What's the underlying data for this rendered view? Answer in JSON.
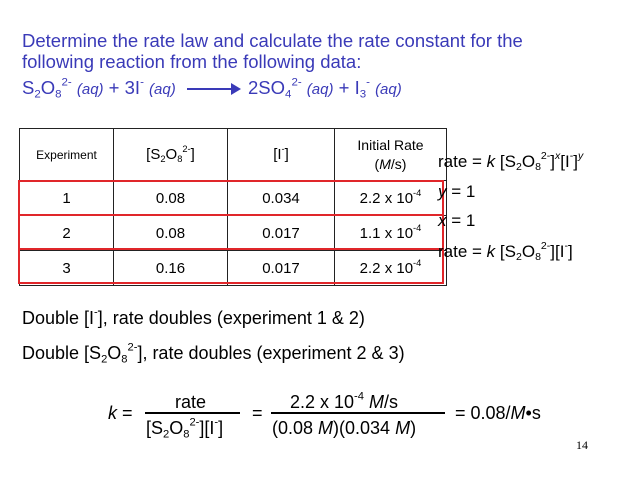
{
  "heading": {
    "line1": "Determine the rate law and calculate the rate constant for the",
    "line2": "following reaction from the following data:"
  },
  "reaction": {
    "reactant1": "S2O8 2- (aq)",
    "reactant2": "3I- (aq)",
    "product1": "2SO4 2- (aq)",
    "product2": "I3- (aq)"
  },
  "table": {
    "headers": [
      "Experiment",
      "[S2O8 2-]",
      "[I-]",
      "Initial Rate (M/s)"
    ],
    "rows": [
      {
        "experiment": "1",
        "s2o8": "0.08",
        "iodide": "0.034",
        "rate": "2.2 x 10-4"
      },
      {
        "experiment": "2",
        "s2o8": "0.08",
        "iodide": "0.017",
        "rate": "1.1 x 10-4"
      },
      {
        "experiment": "3",
        "s2o8": "0.16",
        "iodide": "0.017",
        "rate": "2.2 x 10-4"
      }
    ]
  },
  "rate_law": {
    "general": "rate = k [S2O8 2-]x[I-]y",
    "y_value": "y = 1",
    "x_value": "x = 1",
    "final": "rate = k [S2O8 2-][I-]"
  },
  "observations": {
    "iodide": "Double [I-], rate doubles (experiment 1 & 2)",
    "persulfate": "Double [S2O8 2-], rate doubles (experiment 2 & 3)"
  },
  "calculation": {
    "k_label": "k =",
    "numerator1": "rate",
    "denominator1": "[S2O8 2-][I-]",
    "equals": "=",
    "numerator2": "2.2 x 10-4 M/s",
    "denominator2": "(0.08 M)(0.034 M)",
    "result": "= 0.08/M•s"
  },
  "page_number": "14",
  "colors": {
    "heading": "#3a3ab8",
    "highlight": "#e0262a"
  }
}
